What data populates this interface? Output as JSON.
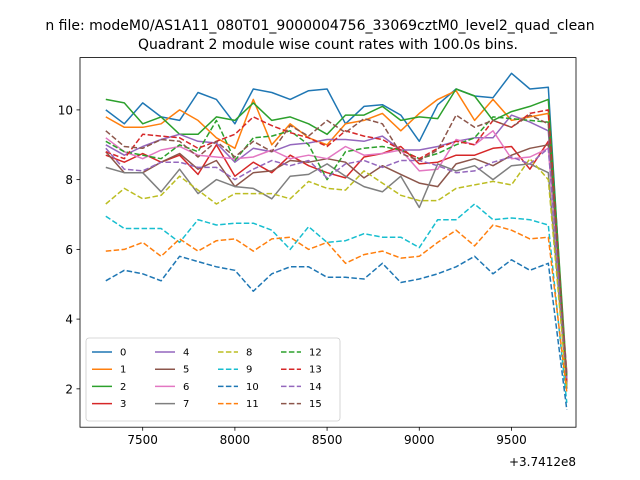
{
  "figure": {
    "suptitle": "n file: modeM0/AS1A11_080T01_9000004756_33069cztM0_level2_quad_clean",
    "title": "Quadrant 2 module wise count rates with 100.0s bins.",
    "offset_text": "+3.7412e8"
  },
  "chart_data": {
    "type": "line",
    "title": "Quadrant 2 module wise count rates with 100.0s bins.",
    "x_offset": 374120000,
    "x_offset_label": "+3.7412e8",
    "xlim": [
      7160,
      9850
    ],
    "ylim": [
      0.9,
      11.5
    ],
    "xticks": [
      7500,
      8000,
      8500,
      9000,
      9500
    ],
    "yticks": [
      2,
      4,
      6,
      8,
      10
    ],
    "grid": false,
    "legend_position": "lower-left",
    "legend_columns": 4,
    "x": [
      7300,
      7400,
      7500,
      7600,
      7700,
      7800,
      7900,
      8000,
      8100,
      8200,
      8300,
      8400,
      8500,
      8600,
      8700,
      8800,
      8900,
      9000,
      9100,
      9200,
      9300,
      9400,
      9500,
      9600,
      9700,
      9800
    ],
    "series": [
      {
        "name": "0",
        "color": "#1f77b4",
        "dash": "solid",
        "values": [
          10.0,
          9.6,
          10.2,
          9.8,
          9.7,
          10.5,
          10.3,
          9.6,
          10.6,
          10.5,
          10.3,
          10.55,
          10.6,
          9.6,
          10.1,
          10.15,
          9.85,
          9.1,
          10.15,
          10.6,
          10.4,
          10.35,
          11.05,
          10.6,
          10.65,
          2.0
        ]
      },
      {
        "name": "1",
        "color": "#ff7f0e",
        "dash": "solid",
        "values": [
          9.8,
          9.5,
          9.5,
          9.6,
          10.0,
          9.7,
          9.2,
          8.9,
          10.3,
          9.0,
          9.6,
          9.2,
          9.0,
          9.6,
          9.7,
          9.9,
          9.4,
          9.9,
          10.3,
          10.55,
          9.7,
          10.3,
          9.7,
          9.8,
          9.9,
          2.2
        ]
      },
      {
        "name": "2",
        "color": "#2ca02c",
        "dash": "solid",
        "values": [
          10.3,
          10.2,
          9.6,
          9.8,
          9.3,
          9.3,
          9.8,
          9.7,
          10.2,
          9.7,
          9.8,
          9.6,
          9.3,
          9.85,
          9.85,
          10.1,
          9.7,
          9.8,
          9.75,
          10.6,
          10.4,
          9.7,
          9.95,
          10.1,
          10.3,
          2.4
        ]
      },
      {
        "name": "3",
        "color": "#d62728",
        "dash": "solid",
        "values": [
          8.7,
          8.5,
          8.75,
          8.5,
          8.7,
          8.15,
          9.0,
          8.1,
          8.5,
          8.2,
          8.7,
          8.4,
          8.2,
          8.05,
          8.65,
          8.75,
          8.95,
          8.45,
          8.5,
          8.7,
          8.7,
          8.9,
          8.95,
          8.3,
          9.1,
          2.2
        ]
      },
      {
        "name": "4",
        "color": "#9467bd",
        "dash": "solid",
        "values": [
          9.0,
          8.7,
          8.95,
          9.15,
          9.3,
          9.1,
          9.05,
          8.5,
          8.9,
          8.8,
          9.0,
          9.05,
          9.15,
          9.15,
          9.1,
          9.25,
          8.85,
          8.85,
          8.95,
          9.1,
          9.2,
          9.2,
          9.85,
          9.65,
          9.4,
          2.3
        ]
      },
      {
        "name": "5",
        "color": "#8c564b",
        "dash": "solid",
        "values": [
          8.8,
          8.2,
          8.2,
          8.5,
          8.75,
          8.3,
          8.55,
          7.8,
          8.2,
          8.25,
          8.55,
          8.5,
          8.6,
          8.5,
          8.05,
          8.4,
          8.15,
          7.9,
          7.8,
          8.45,
          8.6,
          8.4,
          8.7,
          8.9,
          9.0,
          2.1
        ]
      },
      {
        "name": "6",
        "color": "#e377c2",
        "dash": "solid",
        "values": [
          9.2,
          8.8,
          8.6,
          8.85,
          8.95,
          8.7,
          8.65,
          8.6,
          8.65,
          8.85,
          8.6,
          8.7,
          8.6,
          8.95,
          8.7,
          8.75,
          8.85,
          8.25,
          8.3,
          9.15,
          9.0,
          9.4,
          8.6,
          8.65,
          8.9,
          2.5
        ]
      },
      {
        "name": "7",
        "color": "#7f7f7f",
        "dash": "solid",
        "values": [
          8.35,
          8.2,
          8.2,
          7.65,
          8.3,
          7.6,
          8.0,
          7.8,
          7.75,
          7.45,
          8.1,
          8.15,
          8.45,
          8.1,
          7.8,
          7.65,
          8.1,
          7.2,
          8.45,
          8.25,
          8.4,
          8.0,
          8.4,
          8.45,
          8.2,
          2.1
        ]
      },
      {
        "name": "8",
        "color": "#bcbd22",
        "dash": "dashed",
        "values": [
          7.3,
          7.75,
          7.45,
          7.55,
          8.1,
          7.7,
          7.3,
          7.6,
          7.6,
          7.6,
          7.45,
          7.95,
          7.75,
          7.7,
          8.25,
          7.9,
          7.55,
          7.4,
          7.4,
          7.75,
          7.85,
          7.95,
          7.85,
          8.6,
          8.0,
          2.0
        ]
      },
      {
        "name": "9",
        "color": "#17becf",
        "dash": "dashed",
        "values": [
          6.95,
          6.6,
          6.6,
          6.6,
          6.2,
          6.85,
          6.7,
          6.75,
          6.75,
          6.55,
          6.0,
          6.65,
          6.2,
          6.25,
          6.45,
          6.35,
          6.35,
          6.05,
          6.85,
          6.85,
          7.3,
          6.85,
          6.9,
          6.85,
          6.7,
          1.6
        ]
      },
      {
        "name": "10",
        "color": "#1f77b4",
        "dash": "dashed",
        "values": [
          5.1,
          5.4,
          5.3,
          5.1,
          5.8,
          5.65,
          5.5,
          5.4,
          4.8,
          5.3,
          5.5,
          5.5,
          5.2,
          5.2,
          5.15,
          5.6,
          5.05,
          5.15,
          5.3,
          5.5,
          5.8,
          5.3,
          5.7,
          5.4,
          5.6,
          1.4
        ]
      },
      {
        "name": "11",
        "color": "#ff7f0e",
        "dash": "dashed",
        "values": [
          5.95,
          6.0,
          6.2,
          5.8,
          6.3,
          5.95,
          6.25,
          6.3,
          5.95,
          6.3,
          6.35,
          6.0,
          6.2,
          5.6,
          5.85,
          5.95,
          5.75,
          5.8,
          6.2,
          6.55,
          6.1,
          6.7,
          6.55,
          6.3,
          6.35,
          1.9
        ]
      },
      {
        "name": "12",
        "color": "#2ca02c",
        "dash": "dashed",
        "values": [
          9.1,
          8.8,
          8.7,
          8.6,
          9.0,
          8.8,
          9.7,
          8.55,
          9.2,
          9.25,
          9.4,
          9.0,
          8.0,
          8.8,
          8.9,
          8.95,
          8.85,
          8.6,
          8.75,
          9.0,
          9.2,
          9.8,
          9.75,
          9.7,
          9.65,
          2.3
        ]
      },
      {
        "name": "13",
        "color": "#d62728",
        "dash": "dashed",
        "values": [
          8.8,
          8.6,
          9.3,
          9.25,
          9.2,
          8.9,
          9.1,
          9.3,
          9.8,
          9.55,
          9.35,
          9.2,
          8.95,
          9.4,
          9.25,
          9.15,
          8.85,
          8.6,
          8.9,
          9.1,
          9.0,
          9.7,
          9.5,
          9.9,
          10.0,
          2.2
        ]
      },
      {
        "name": "14",
        "color": "#9467bd",
        "dash": "dashed",
        "values": [
          8.9,
          8.3,
          8.25,
          8.5,
          8.5,
          8.35,
          8.35,
          8.0,
          8.3,
          8.55,
          8.4,
          8.55,
          8.05,
          8.45,
          8.55,
          8.35,
          8.55,
          8.55,
          8.4,
          8.2,
          8.25,
          8.5,
          8.65,
          8.45,
          8.9,
          2.3
        ]
      },
      {
        "name": "15",
        "color": "#8c564b",
        "dash": "dashed",
        "values": [
          9.4,
          8.95,
          8.9,
          9.15,
          9.1,
          8.65,
          9.1,
          8.65,
          9.1,
          8.8,
          9.55,
          9.25,
          9.7,
          9.35,
          9.75,
          9.6,
          8.75,
          8.55,
          8.85,
          9.85,
          9.5,
          9.7,
          9.5,
          9.85,
          9.6,
          2.4
        ]
      }
    ]
  }
}
